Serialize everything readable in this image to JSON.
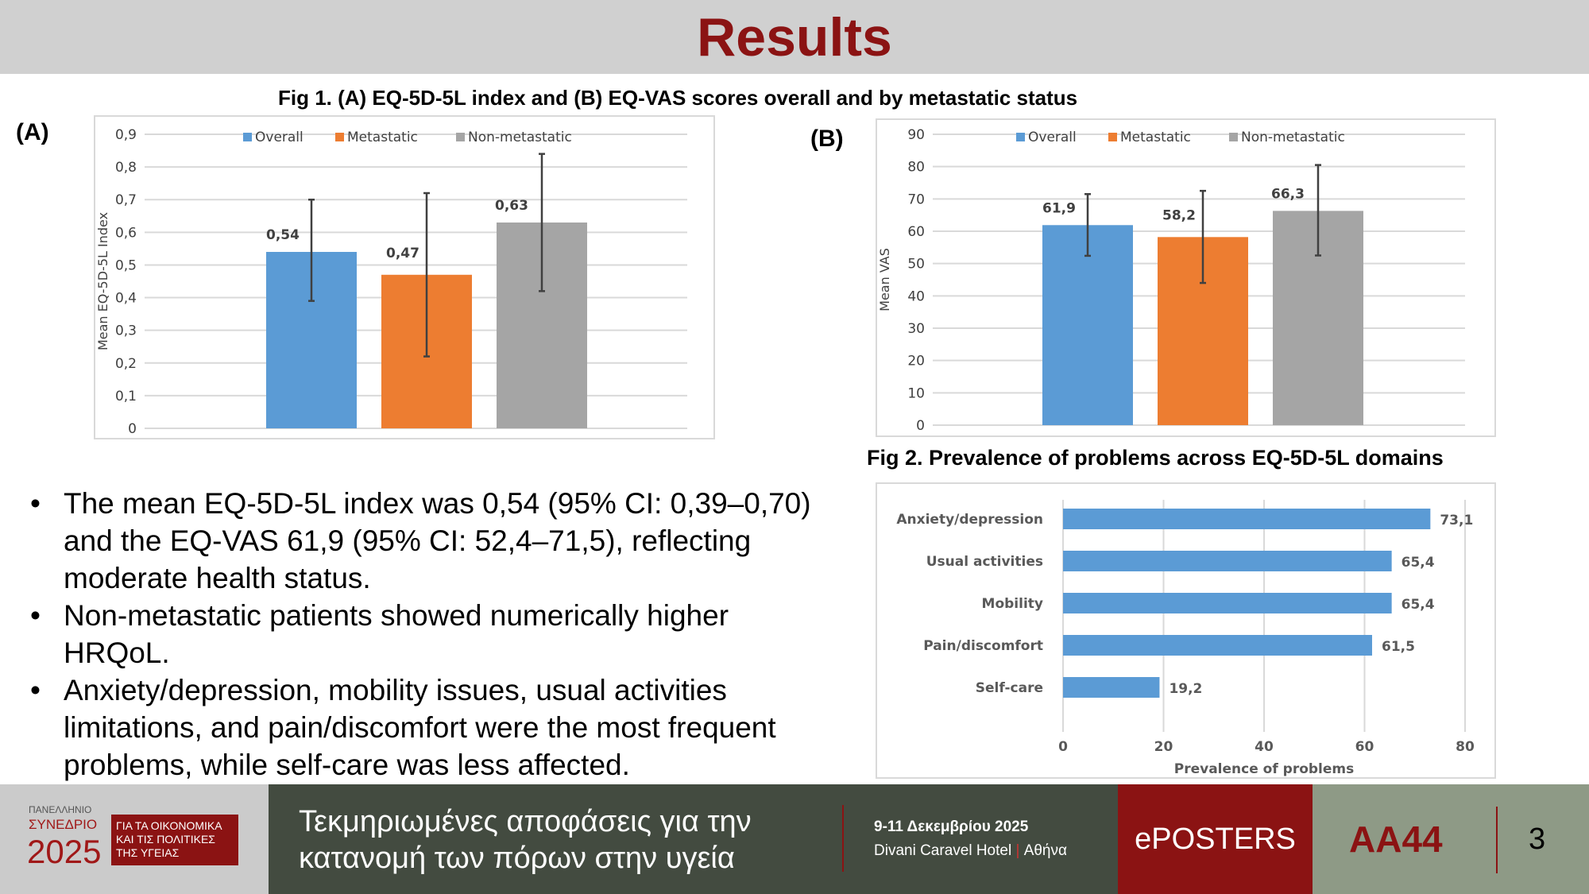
{
  "header": {
    "title": "Results"
  },
  "fig1_title": "Fig 1. (A) EQ-5D-5L index and (B) EQ-VAS scores overall and by metastatic status",
  "fig2_title": "Fig 2. Prevalence of problems across EQ-5D-5L domains",
  "colors": {
    "overall": "#5b9bd5",
    "metastatic": "#ed7d31",
    "nonmetastatic": "#a5a5a5",
    "brand": "#8b1313"
  },
  "chart_data": [
    {
      "panel": "(A)",
      "type": "bar",
      "ylabel": "Mean EQ-5D-5L Index",
      "legend": [
        "Overall",
        "Metastatic",
        "Non-metastatic"
      ],
      "legend_position": "top",
      "ylim": [
        0,
        0.9
      ],
      "yticks": [
        "0",
        "0,1",
        "0,2",
        "0,3",
        "0,4",
        "0,5",
        "0,6",
        "0,7",
        "0,8",
        "0,9"
      ],
      "values": [
        0.54,
        0.47,
        0.63
      ],
      "labels": [
        "0,54",
        "0,47",
        "0,63"
      ],
      "error_low": [
        0.39,
        0.22,
        0.42
      ],
      "error_high": [
        0.7,
        0.72,
        0.84
      ],
      "grid": true
    },
    {
      "panel": "(B)",
      "type": "bar",
      "ylabel": "Mean VAS",
      "legend": [
        "Overall",
        "Metastatic",
        "Non-metastatic"
      ],
      "legend_position": "top",
      "ylim": [
        0,
        90
      ],
      "yticks": [
        "0",
        "10",
        "20",
        "30",
        "40",
        "50",
        "60",
        "70",
        "80",
        "90"
      ],
      "values": [
        61.9,
        58.2,
        66.3
      ],
      "labels": [
        "61,9",
        "58,2",
        "66,3"
      ],
      "error_low": [
        52.4,
        44,
        52.5
      ],
      "error_high": [
        71.5,
        72.5,
        80.5
      ],
      "grid": true
    },
    {
      "type": "bar",
      "orientation": "horizontal",
      "xlabel": "Prevalence of problems",
      "xlim": [
        0,
        80
      ],
      "xticks": [
        "0",
        "20",
        "40",
        "60",
        "80"
      ],
      "categories": [
        "Anxiety/depression",
        "Usual activities",
        "Mobility",
        "Pain/discomfort",
        "Self-care"
      ],
      "values": [
        73.1,
        65.4,
        65.4,
        61.5,
        19.2
      ],
      "labels": [
        "73,1",
        "65,4",
        "65,4",
        "61,5",
        "19,2"
      ],
      "grid": true
    }
  ],
  "bullets": [
    "The mean EQ-5D-5L index was 0,54 (95% CI: 0,39–0,70) and the EQ-VAS 61,9 (95% CI: 52,4–71,5), reflecting moderate health status.",
    "Non-metastatic patients showed numerically higher HRQoL.",
    "Anxiety/depression, mobility issues, usual activities limitations, and pain/discomfort were the most frequent problems, while self-care was less affected."
  ],
  "footer": {
    "logo_top": "ΠΑΝΕΛΛΗΝΙΟ",
    "logo_mid": "ΣΥΝΕΔΡΙΟ",
    "logo_year": "2025",
    "logo_box": [
      "ΓΙΑ ΤΑ ΟΙΚΟΝΟΜΙΚΑ",
      "ΚΑΙ ΤΙΣ ΠΟΛΙΤΙΚΕΣ",
      "ΤΗΣ ΥΓΕΙΑΣ"
    ],
    "slogan": [
      "Τεκμηριωμένες αποφάσεις για την",
      "κατανομή των πόρων στην υγεία"
    ],
    "date": "9-11 Δεκεμβρίου 2025",
    "venue": "Divani Caravel Hotel",
    "city": "Αθήνα",
    "eposters": "ePOSTERS",
    "code": "AA44",
    "page": "3"
  }
}
